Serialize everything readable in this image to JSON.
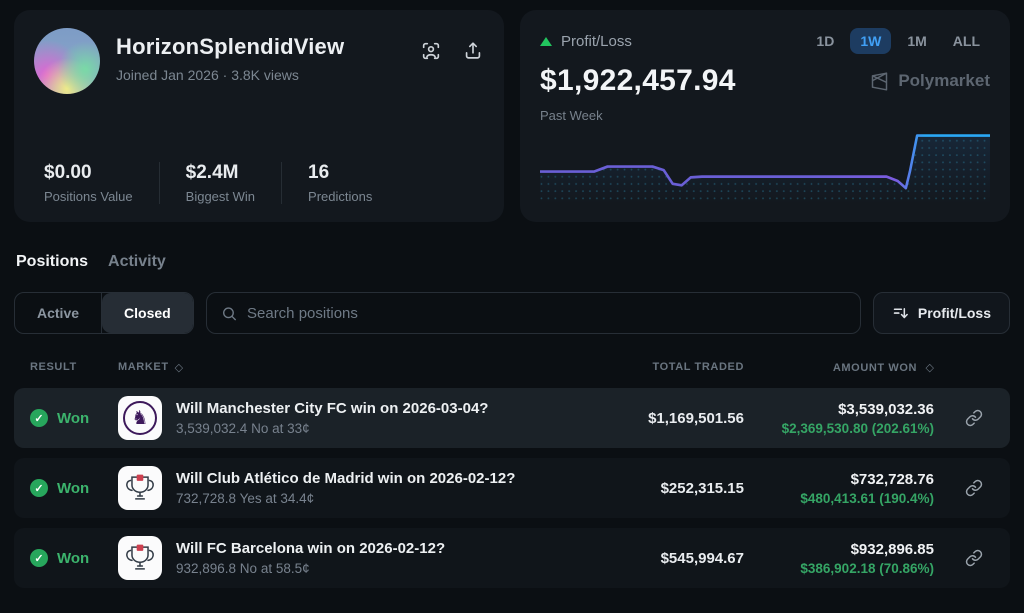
{
  "profile": {
    "name": "HorizonSplendidView",
    "meta": "Joined Jan 2026  ·  3.8K views",
    "stats": [
      {
        "value": "$0.00",
        "label": "Positions Value"
      },
      {
        "value": "$2.4M",
        "label": "Biggest Win"
      },
      {
        "value": "16",
        "label": "Predictions"
      }
    ]
  },
  "pnl": {
    "label": "Profit/Loss",
    "value": "$1,922,457.94",
    "period": "Past Week",
    "brand": "Polymarket",
    "ranges": [
      {
        "label": "1D",
        "active": false
      },
      {
        "label": "1W",
        "active": true
      },
      {
        "label": "1M",
        "active": false
      },
      {
        "label": "ALL",
        "active": false
      }
    ]
  },
  "chart_data": {
    "type": "area",
    "title": "Profit/Loss",
    "subtitle": "Past Week",
    "range_selected": "1W",
    "end_value": 1922457.94,
    "axes": "none",
    "x_pct": [
      0,
      12,
      15,
      25,
      27.5,
      29.5,
      31.5,
      33.5,
      36,
      77,
      79.5,
      81.3,
      82.2,
      83.8,
      100
    ],
    "y_pct_from_top": [
      55,
      55,
      48,
      48,
      53,
      72,
      74,
      63,
      62,
      62,
      68,
      78,
      55,
      5,
      5
    ],
    "line_gradient": [
      "#6a5fd6",
      "#7b5ce0",
      "#2aa8f5"
    ],
    "fill": "dotted-under-line"
  },
  "section_tabs": {
    "positions": "Positions",
    "activity": "Activity"
  },
  "filters": {
    "active": "Active",
    "closed": "Closed",
    "search_placeholder": "Search positions",
    "sort": "Profit/Loss"
  },
  "table": {
    "check_glyph": "✓",
    "pl_glyph": "♞",
    "headers": {
      "result": "RESULT",
      "market": "MARKET",
      "market_sort_icon": "◇",
      "total": "TOTAL TRADED",
      "won": "AMOUNT WON",
      "won_sort_icon": "◇"
    },
    "rows": [
      {
        "result": "Won",
        "icon": "premier-league",
        "title": "Will Manchester City FC win on 2026-03-04?",
        "subtitle": "3,539,032.4 No at 33¢",
        "total_traded": "$1,169,501.56",
        "amount_won": "$3,539,032.36",
        "profit": "$2,369,530.80 (202.61%)",
        "highlighted": true
      },
      {
        "result": "Won",
        "icon": "trophy",
        "title": "Will Club Atlético de Madrid win on 2026-02-12?",
        "subtitle": "732,728.8 Yes at 34.4¢",
        "total_traded": "$252,315.15",
        "amount_won": "$732,728.76",
        "profit": "$480,413.61 (190.4%)",
        "highlighted": false
      },
      {
        "result": "Won",
        "icon": "trophy",
        "title": "Will FC Barcelona win on 2026-02-12?",
        "subtitle": "932,896.8 No at 58.5¢",
        "total_traded": "$545,994.67",
        "amount_won": "$932,896.85",
        "profit": "$386,902.18 (70.86%)",
        "highlighted": false
      }
    ]
  },
  "colors": {
    "page_bg": "#0b0f13",
    "card_bg": "#13181e",
    "row_bg": "#10151a",
    "row_highlight_bg": "#1b2228",
    "green": "#27a65c",
    "green_text": "#35a565",
    "range_active_bg": "#1d3c61",
    "range_active_text": "#41a0f5",
    "muted_text": "#7c8792"
  }
}
